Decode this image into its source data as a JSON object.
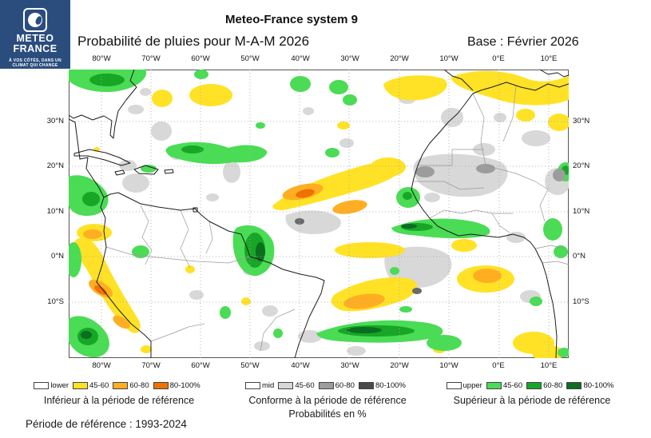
{
  "logo": {
    "line1": "METEO",
    "line2": "FRANCE",
    "tagline1": "À VOS CÔTÉS, DANS UN",
    "tagline2": "CLIMAT QUI CHANGE"
  },
  "header": {
    "title": "Meteo-France system 9",
    "subtitle": "Probabilité de pluies pour M-A-M 2026",
    "base": "Base : Février 2026"
  },
  "map": {
    "lon_ticks": [
      "80°W",
      "70°W",
      "60°W",
      "50°W",
      "40°W",
      "30°W",
      "20°W",
      "10°W",
      "0°E",
      "10°E"
    ],
    "lat_ticks": [
      "30°N",
      "20°N",
      "10°N",
      "0°N",
      "10°S"
    ]
  },
  "colors": {
    "logo_blue": "#2B4D7E",
    "yellow": "#FFE226",
    "orange": "#FFAE21",
    "dark_orange": "#F07000",
    "light_green": "#4ADC55",
    "green": "#17A626",
    "dark_green": "#0B6E20",
    "light_gray": "#D8D8D8",
    "gray": "#9C9C9C",
    "dark_gray": "#4A4A4A"
  },
  "legend": {
    "groups": [
      {
        "caption": "Inférieur à la période de référence",
        "items": [
          {
            "label": "lower",
            "color": "#FFFFFF"
          },
          {
            "label": "45-60",
            "color": "#FFE226"
          },
          {
            "label": "60-80",
            "color": "#FFAE21"
          },
          {
            "label": "80-100%",
            "color": "#F07000"
          }
        ]
      },
      {
        "caption": "Conforme à la période de référence",
        "subcaption": "Probabilités en %",
        "items": [
          {
            "label": "mid",
            "color": "#FFFFFF"
          },
          {
            "label": "45-60",
            "color": "#D8D8D8"
          },
          {
            "label": "60-80",
            "color": "#9C9C9C"
          },
          {
            "label": "80-100%",
            "color": "#4A4A4A"
          }
        ]
      },
      {
        "caption": "Supérieur à la période de référence",
        "items": [
          {
            "label": "upper",
            "color": "#FFFFFF"
          },
          {
            "label": "45-60",
            "color": "#4ADC55"
          },
          {
            "label": "60-80",
            "color": "#17A626"
          },
          {
            "label": "80-100%",
            "color": "#0B6E20"
          }
        ]
      }
    ]
  },
  "footer": {
    "reference_period": "Période de référence : 1993-2024"
  }
}
